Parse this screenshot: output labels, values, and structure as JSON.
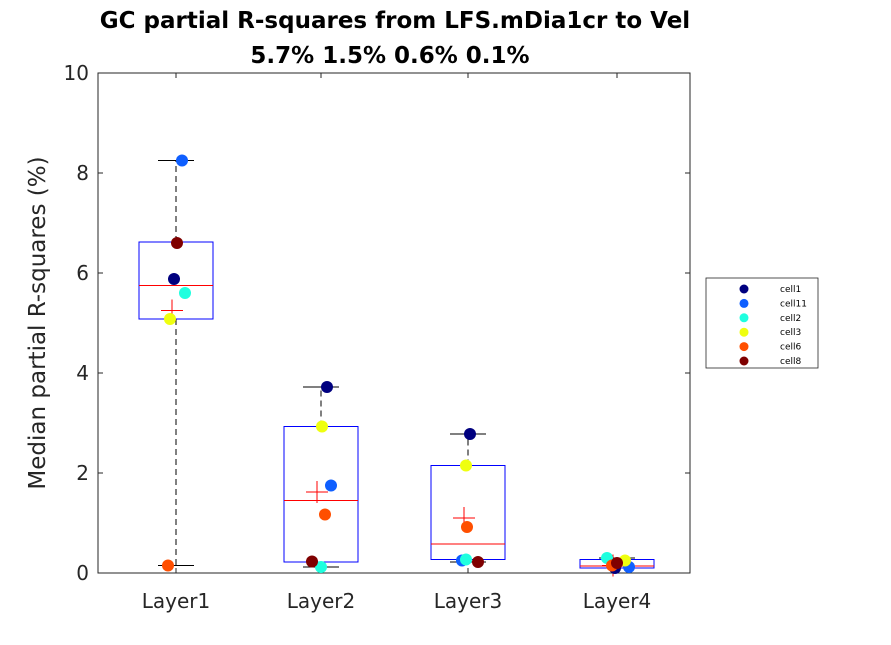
{
  "chart_data": {
    "type": "box",
    "title": "GC partial R-squares from LFS.mDia1cr to Vel",
    "subtitle": "5.7% 1.5% 0.6% 0.1%",
    "xlabel": "",
    "ylabel": "Median partial R-squares (%)",
    "ylim": [
      0,
      10
    ],
    "yticks": [
      0,
      2,
      4,
      6,
      8,
      10
    ],
    "categories": [
      "Layer1",
      "Layer2",
      "Layer3",
      "Layer4"
    ],
    "boxes": [
      {
        "q1": 5.08,
        "median": 5.75,
        "q3": 6.62,
        "whisker_low": 0.15,
        "whisker_high": 8.25,
        "mean": 5.25
      },
      {
        "q1": 0.22,
        "median": 1.45,
        "q3": 2.93,
        "whisker_low": 0.12,
        "whisker_high": 3.72,
        "mean": 1.62
      },
      {
        "q1": 0.27,
        "median": 0.58,
        "q3": 2.15,
        "whisker_low": 0.22,
        "whisker_high": 2.78,
        "mean": 1.1
      },
      {
        "q1": 0.1,
        "median": 0.14,
        "q3": 0.27,
        "whisker_low": 0.1,
        "whisker_high": 0.3,
        "mean": 0.15
      }
    ],
    "series": [
      {
        "name": "cell1",
        "color": "#00007f",
        "values": [
          5.88,
          3.72,
          2.78,
          0.1
        ]
      },
      {
        "name": "cell11",
        "color": "#0f5fff",
        "values": [
          8.25,
          1.75,
          0.25,
          0.12
        ]
      },
      {
        "name": "cell2",
        "color": "#1fffdf",
        "values": [
          5.6,
          0.12,
          0.27,
          0.3
        ]
      },
      {
        "name": "cell3",
        "color": "#efff0f",
        "values": [
          5.08,
          2.93,
          2.15,
          0.25
        ]
      },
      {
        "name": "cell6",
        "color": "#ff4f00",
        "values": [
          0.15,
          1.17,
          0.92,
          0.15
        ]
      },
      {
        "name": "cell8",
        "color": "#7f0000",
        "values": [
          6.6,
          0.23,
          0.22,
          0.2
        ]
      }
    ],
    "legend_position": "right",
    "colors": {
      "box": "#0000ff",
      "median": "#ff0000",
      "mean": "#ff0000",
      "whisker": "#000000"
    }
  }
}
